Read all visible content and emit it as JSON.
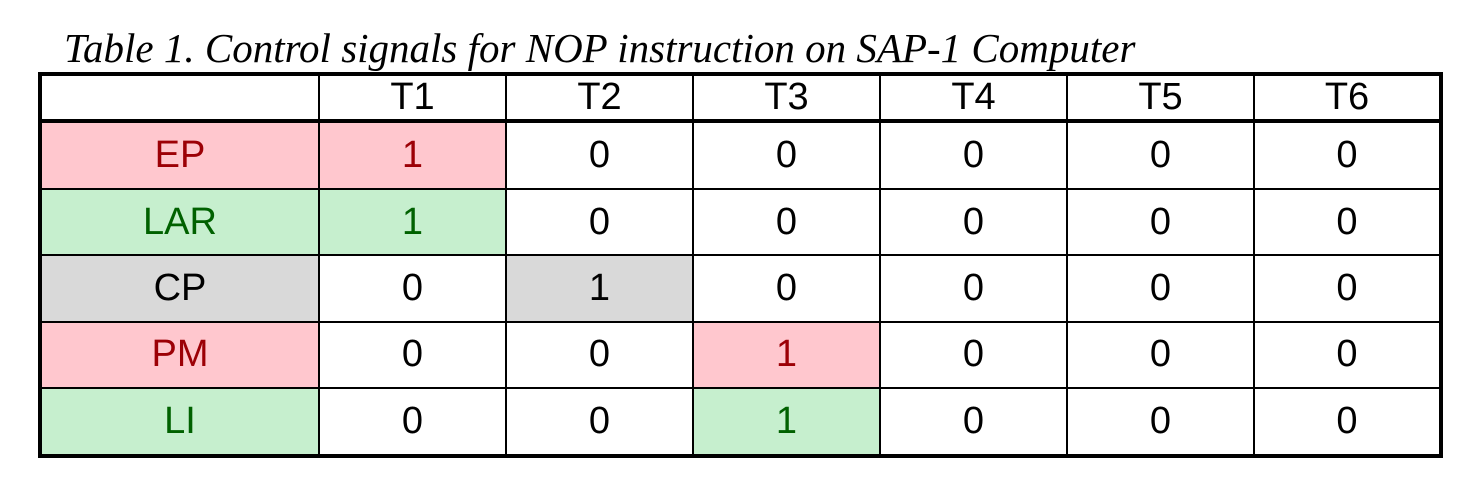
{
  "caption": "Table 1. Control signals for NOP instruction on SAP-1 Computer",
  "columns": [
    "",
    "T1",
    "T2",
    "T3",
    "T4",
    "T5",
    "T6"
  ],
  "rows": [
    {
      "signal": "EP",
      "values": [
        "1",
        "0",
        "0",
        "0",
        "0",
        "0"
      ]
    },
    {
      "signal": "LAR",
      "values": [
        "1",
        "0",
        "0",
        "0",
        "0",
        "0"
      ]
    },
    {
      "signal": "CP",
      "values": [
        "0",
        "1",
        "0",
        "0",
        "0",
        "0"
      ]
    },
    {
      "signal": "PM",
      "values": [
        "0",
        "0",
        "1",
        "0",
        "0",
        "0"
      ]
    },
    {
      "signal": "LI",
      "values": [
        "0",
        "0",
        "1",
        "0",
        "0",
        "0"
      ]
    }
  ],
  "colors": {
    "red_fill": "#ffc7ce",
    "red_text": "#9c0006",
    "green_fill": "#c6efce",
    "green_text": "#006100",
    "gray_fill": "#d9d9d9"
  }
}
